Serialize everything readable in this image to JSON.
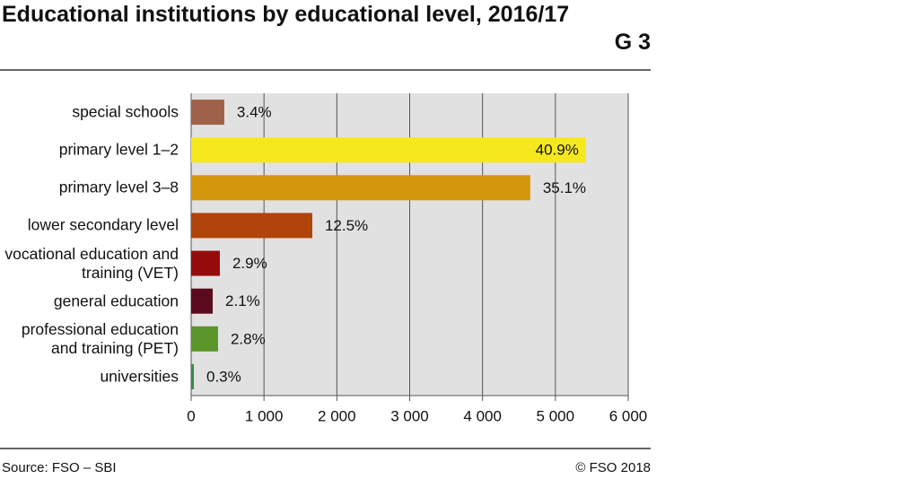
{
  "title": "Educational institutions by educational level, 2016/17",
  "chart_code": "G 3",
  "source": "Source: FSO – SBI",
  "copyright": "© FSO 2018",
  "chart_data": {
    "type": "bar",
    "orientation": "horizontal",
    "categories": [
      "special schools",
      "primary level 1–2",
      "primary level 3–8",
      "lower secondary level",
      "vocational education and training (VET)",
      "general education",
      "professional education and training (PET)",
      "universities"
    ],
    "values": [
      455,
      5419,
      4655,
      1663,
      394,
      296,
      369,
      37
    ],
    "share_labels": [
      "3.4%",
      "40.9%",
      "35.1%",
      "12.5%",
      "2.9%",
      "2.1%",
      "2.8%",
      "0.3%"
    ],
    "colors": [
      "#a0614a",
      "#f6e81e",
      "#d4960a",
      "#b0440a",
      "#960c0c",
      "#5c0b1f",
      "#5a962a",
      "#3a8a4e"
    ],
    "xlim": [
      0,
      6000
    ],
    "xticks": [
      0,
      {
        "value": 1000,
        "label": "1 000"
      },
      {
        "value": 2000,
        "label": "2 000"
      },
      {
        "value": 3000,
        "label": "3 000"
      },
      {
        "value": 4000,
        "label": "4 000"
      },
      {
        "value": 5000,
        "label": "5 000"
      },
      {
        "value": 6000,
        "label": "6 000"
      }
    ],
    "grid": true
  }
}
